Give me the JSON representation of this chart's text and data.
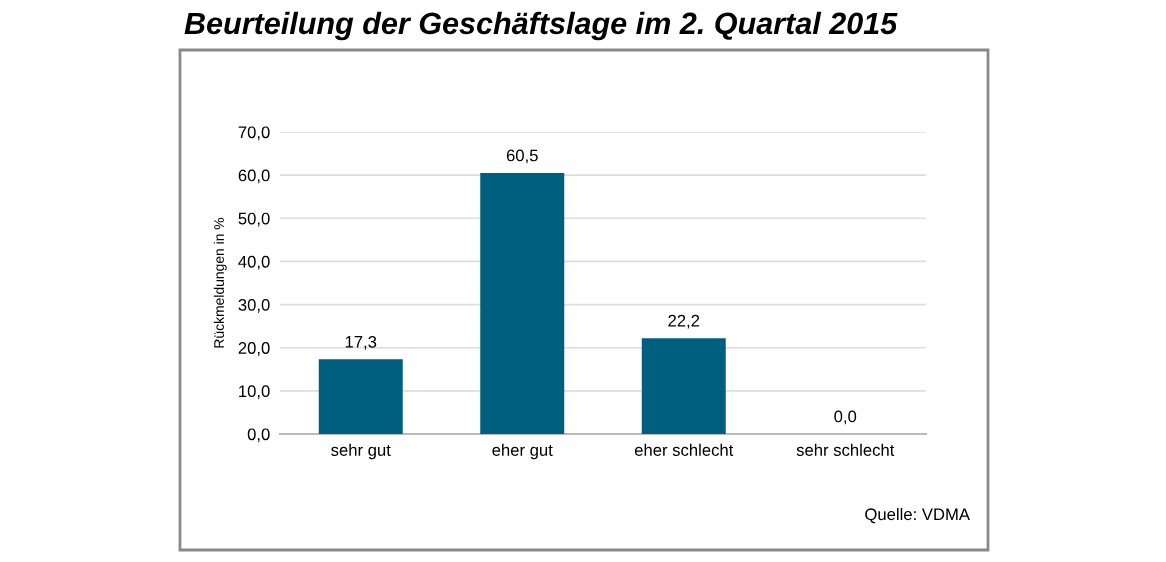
{
  "chart_data": {
    "type": "bar",
    "title": "Beurteilung der Geschäftslage im 2. Quartal 2015",
    "ylabel": "Rückmeldungen in %",
    "categories": [
      "sehr gut",
      "eher gut",
      "eher schlecht",
      "sehr schlecht"
    ],
    "values": [
      17.3,
      60.5,
      22.2,
      0.0
    ],
    "value_labels": [
      "17,3",
      "60,5",
      "22,2",
      "0,0"
    ],
    "color": "#005f7f",
    "ylim": [
      0,
      70
    ],
    "yticks": [
      {
        "value": 0,
        "label": "0,0"
      },
      {
        "value": 10,
        "label": "10,0"
      },
      {
        "value": 20,
        "label": "20,0"
      },
      {
        "value": 30,
        "label": "30,0"
      },
      {
        "value": 40,
        "label": "40,0"
      },
      {
        "value": 50,
        "label": "50,0"
      },
      {
        "value": 60,
        "label": "60,0"
      },
      {
        "value": 70,
        "label": "70,0"
      }
    ],
    "grid": "y",
    "annotations": [
      "Quelle: VDMA"
    ]
  }
}
